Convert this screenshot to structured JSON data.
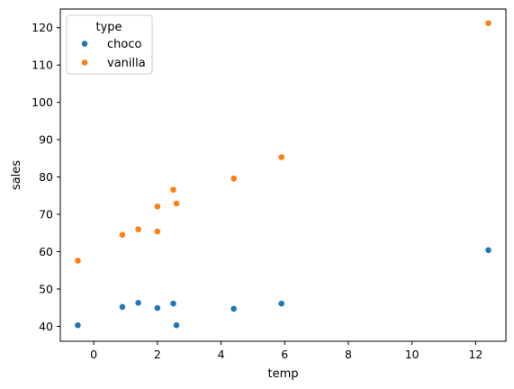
{
  "chart_data": {
    "type": "scatter",
    "xlabel": "temp",
    "ylabel": "sales",
    "xlim": [
      -1.05,
      12.95
    ],
    "ylim": [
      36.0,
      125.0
    ],
    "xticks": [
      0,
      2,
      4,
      6,
      8,
      10,
      12
    ],
    "yticks": [
      40,
      50,
      60,
      70,
      80,
      90,
      100,
      110,
      120
    ],
    "grid": false,
    "legend": {
      "title": "type",
      "placement": "top-left"
    },
    "series": [
      {
        "name": "choco",
        "color": "#1f77b4",
        "x": [
          -0.5,
          0.9,
          1.4,
          2.0,
          2.5,
          2.6,
          4.4,
          5.9,
          12.4
        ],
        "y": [
          40.3,
          45.2,
          46.3,
          44.9,
          46.1,
          40.3,
          44.7,
          46.1,
          60.4
        ]
      },
      {
        "name": "vanilla",
        "color": "#ff7f0e",
        "x": [
          -0.5,
          0.9,
          1.4,
          2.0,
          2.0,
          2.5,
          2.6,
          4.4,
          5.9,
          12.4
        ],
        "y": [
          57.6,
          64.5,
          66.0,
          72.1,
          65.4,
          76.6,
          72.9,
          79.6,
          85.3,
          121.2
        ]
      }
    ]
  }
}
